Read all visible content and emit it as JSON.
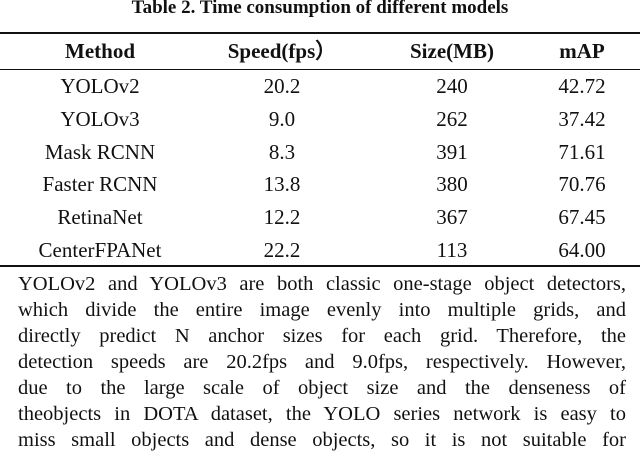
{
  "caption": "Table 2. Time consumption of different models",
  "table": {
    "header": [
      "Method",
      "Speed(fps）",
      "Size(MB)",
      "mAP"
    ],
    "rows": [
      [
        "YOLOv2",
        "20.2",
        "240",
        "42.72"
      ],
      [
        "YOLOv3",
        "9.0",
        "262",
        "37.42"
      ],
      [
        "Mask RCNN",
        "8.3",
        "391",
        "71.61"
      ],
      [
        "Faster RCNN",
        "13.8",
        "380",
        "70.76"
      ],
      [
        "RetinaNet",
        "12.2",
        "367",
        "67.45"
      ],
      [
        "CenterFPANet",
        "22.2",
        "113",
        "64.00"
      ]
    ]
  },
  "paragraph": {
    "lines": [
      "YOLOv2 and YOLOv3 are both classic one-stage object detectors,",
      "which divide the entire image evenly into multiple grids, and",
      "directly predict N anchor sizes for each grid. Therefore, the",
      "detection speeds are 20.2fps and 9.0fps, respectively. However,",
      "due to the large scale of object size and the denseness of",
      "theobjects in DOTA dataset, the YOLO series network is easy to",
      "miss small objects and dense objects, so it is not suitable for"
    ]
  }
}
